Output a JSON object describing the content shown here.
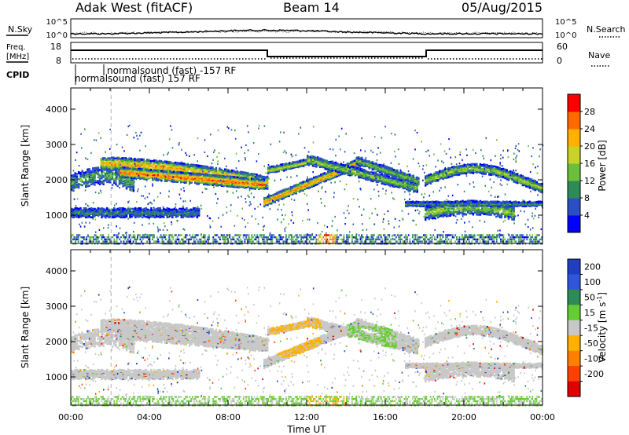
{
  "header": {
    "title_left": "Adak West (fitACF)",
    "title_center": "Beam 14",
    "title_right": "05/Aug/2015"
  },
  "panels": {
    "noise": {
      "left_label": "N.Sky",
      "right_label": "N.Search",
      "left_ticks": [
        "10^5",
        "10^0"
      ],
      "right_ticks": [
        "10^5",
        "10^0"
      ]
    },
    "freq": {
      "left_label_1": "Freq.",
      "left_label_2": "[MHz]",
      "right_label": "Nave",
      "left_ticks": [
        "18",
        "8"
      ],
      "right_ticks": [
        "60",
        "0"
      ]
    },
    "cpid": {
      "label": "CPID",
      "line1": "normalsound (fast) -157 RF",
      "line2": "normalsound (fast) 157 RF"
    }
  },
  "chart_data": [
    {
      "type": "heatmap",
      "name": "power",
      "ylabel": "Slant Range [km]",
      "yticks": [
        1000,
        2000,
        3000,
        4000
      ],
      "ylim": [
        200,
        4600
      ],
      "xticks": [
        "00:00",
        "04:00",
        "08:00",
        "12:00",
        "16:00",
        "20:00",
        "00:00"
      ],
      "xlim_hours": [
        0,
        24
      ],
      "colorbar": {
        "label": "Power [dB]",
        "ticks": [
          "4",
          "8",
          "12",
          "16",
          "20",
          "24",
          "28"
        ],
        "colors": [
          "#0000ff",
          "#2a4fc4",
          "#2e8b57",
          "#6cbf3c",
          "#c8d22a",
          "#ffb000",
          "#ff6a00",
          "#ff0000"
        ]
      }
    },
    {
      "type": "heatmap",
      "name": "velocity",
      "ylabel": "Slant Range [km]",
      "yticks": [
        1000,
        2000,
        3000,
        4000
      ],
      "ylim": [
        200,
        4600
      ],
      "xticks": [
        "00:00",
        "04:00",
        "08:00",
        "12:00",
        "16:00",
        "20:00",
        "00:00"
      ],
      "xlabel": "Time UT",
      "colorbar": {
        "label": "Velocity [m s",
        "label_sup": "-1",
        "label_end": "]",
        "ticks": [
          "200",
          "100",
          "50",
          "15",
          "-15",
          "-50",
          "-100",
          "-200"
        ],
        "colors": [
          "#1f3fbf",
          "#2f55d8",
          "#2e8b57",
          "#66cc33",
          "#c8c8c8",
          "#ffb000",
          "#ff8000",
          "#ff4000",
          "#e00000"
        ]
      }
    }
  ]
}
